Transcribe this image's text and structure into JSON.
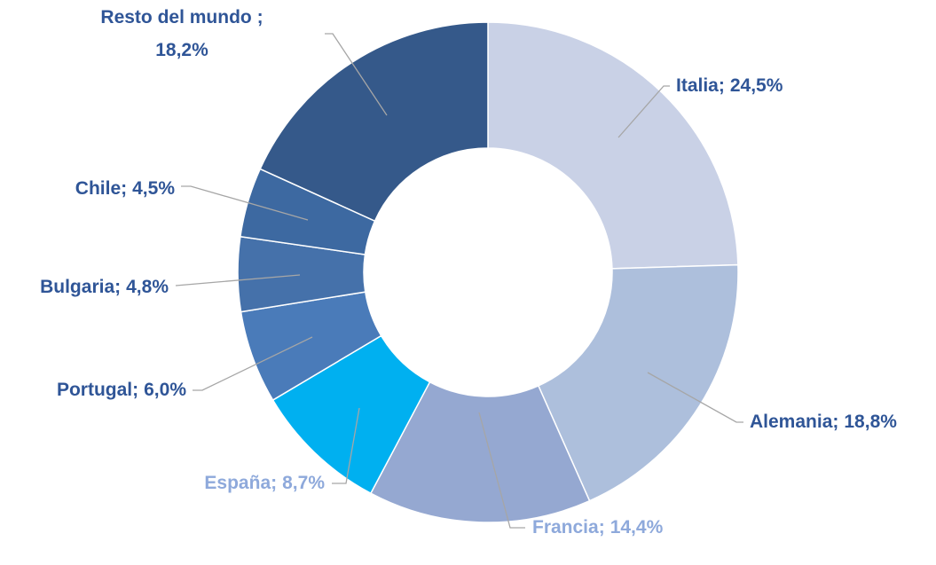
{
  "chart_data": {
    "type": "donut",
    "categories": [
      "Italia;",
      "Alemania;",
      "Francia;",
      "España;",
      "Portugal;",
      "Bulgaria;",
      "Chile;",
      "Resto del mundo ;"
    ],
    "values": [
      24.5,
      18.8,
      14.4,
      8.7,
      6.0,
      4.8,
      4.5,
      18.2
    ],
    "value_labels": [
      "24,5%",
      "18,8%",
      "14,4%",
      "8,7%",
      "6,0%",
      "4,8%",
      "4,5%",
      "18,2%"
    ],
    "colors": [
      "#c9d1e6",
      "#adbfdc",
      "#95a8d1",
      "#00b0f0",
      "#4a7bb9",
      "#4571aa",
      "#3d69a1",
      "#35598a"
    ],
    "label_colors": [
      "#2f5597",
      "#2f5597",
      "#8ea9db",
      "#8ea9db",
      "#2f5597",
      "#2f5597",
      "#2f5597",
      "#2f5597"
    ]
  }
}
